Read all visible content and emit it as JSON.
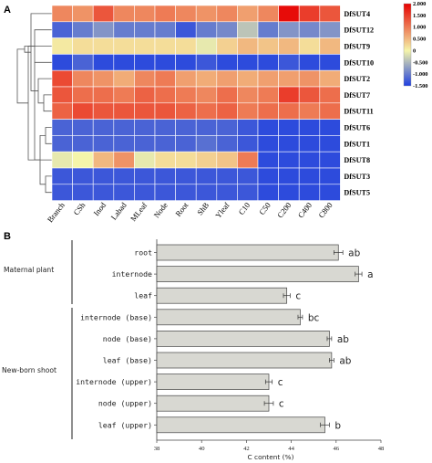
{
  "panels": {
    "a": "A",
    "b": "B"
  },
  "chart_data": [
    {
      "type": "heatmap",
      "columns": [
        "Branch",
        "CSh",
        "Inod",
        "Labad",
        "MLeaf",
        "Node",
        "Root",
        "ShB",
        "Yleaf",
        "C10",
        "C50",
        "C200",
        "C400",
        "C800"
      ],
      "rows": [
        "DfSUT4",
        "DfSUT12",
        "DfSUT9",
        "DfSUT10",
        "DfSUT2",
        "DfSUT7",
        "DfSUT11",
        "DfSUT6",
        "DfSUT1",
        "DfSUT8",
        "DfSUT3",
        "DfSUT5"
      ],
      "values": [
        [
          0.9,
          0.8,
          1.3,
          0.9,
          0.9,
          1.0,
          0.9,
          0.8,
          0.9,
          0.7,
          0.9,
          1.9,
          1.5,
          1.3
        ],
        [
          -1.2,
          -1.0,
          -0.8,
          -1.0,
          -1.0,
          -1.0,
          -1.3,
          -1.0,
          -0.9,
          -0.4,
          -1.0,
          -0.8,
          -0.9,
          -0.8
        ],
        [
          0.1,
          0.2,
          0.2,
          0.2,
          0.2,
          0.2,
          0.2,
          -0.1,
          0.3,
          0.5,
          0.4,
          0.5,
          0.2,
          0.5
        ],
        [
          -1.4,
          -1.2,
          -1.4,
          -1.4,
          -1.4,
          -1.4,
          -1.4,
          -1.3,
          -1.4,
          -1.4,
          -1.4,
          -1.3,
          -1.4,
          -1.4
        ],
        [
          1.4,
          0.9,
          0.8,
          0.6,
          0.9,
          1.0,
          0.7,
          0.6,
          0.7,
          0.6,
          0.7,
          0.7,
          0.8,
          0.6
        ],
        [
          1.3,
          1.1,
          1.1,
          1.0,
          1.2,
          1.1,
          1.0,
          0.9,
          1.1,
          0.9,
          1.0,
          1.5,
          1.3,
          1.1
        ],
        [
          1.2,
          1.4,
          1.3,
          1.3,
          1.3,
          1.3,
          1.2,
          1.1,
          1.2,
          1.0,
          1.1,
          1.1,
          1.0,
          1.1
        ],
        [
          -1.2,
          -1.2,
          -1.2,
          -1.2,
          -1.2,
          -1.2,
          -1.2,
          -1.2,
          -1.2,
          -1.3,
          -1.4,
          -1.4,
          -1.4,
          -1.4
        ],
        [
          -1.2,
          -1.2,
          -1.2,
          -1.2,
          -1.2,
          -1.2,
          -1.2,
          -1.1,
          -1.2,
          -1.3,
          -1.4,
          -1.4,
          -1.4,
          -1.4
        ],
        [
          -0.1,
          0.0,
          0.5,
          0.8,
          -0.1,
          0.2,
          0.2,
          0.3,
          0.4,
          1.0,
          -1.4,
          -1.4,
          -1.4,
          -1.4
        ],
        [
          -1.3,
          -1.3,
          -1.3,
          -1.3,
          -1.3,
          -1.3,
          -1.3,
          -1.3,
          -1.3,
          -1.3,
          -1.4,
          -1.4,
          -1.4,
          -1.4
        ],
        [
          -1.3,
          -1.3,
          -1.3,
          -1.3,
          -1.3,
          -1.3,
          -1.3,
          -1.3,
          -1.3,
          -1.3,
          -1.4,
          -1.4,
          -1.4,
          -1.4
        ]
      ],
      "colorbar": {
        "ticks": [
          "2.000",
          "1.500",
          "1.000",
          "0.500",
          "0",
          "-0.500",
          "-1.000",
          "-1.500"
        ],
        "range": [
          -1.5,
          2.0
        ]
      },
      "colors": {
        "low": "#1f3fe0",
        "mid": "#f5f5aa",
        "high": "#e60000"
      },
      "dendrogram": true
    },
    {
      "type": "bar",
      "orientation": "horizontal",
      "categories": [
        "root",
        "internode",
        "leaf",
        "internode (base)",
        "node (base)",
        "leaf (base)",
        "internode (upper)",
        "node (upper)",
        "leaf (upper)"
      ],
      "values": [
        46.1,
        47.0,
        43.8,
        44.4,
        45.7,
        45.8,
        43.0,
        43.0,
        45.5
      ],
      "errors": [
        0.2,
        0.15,
        0.15,
        0.1,
        0.1,
        0.1,
        0.15,
        0.2,
        0.2
      ],
      "significance": [
        "ab",
        "a",
        "c",
        "bc",
        "ab",
        "ab",
        "c",
        "c",
        "b"
      ],
      "groups": [
        {
          "label": "Maternal plant",
          "categories": [
            "root",
            "internode",
            "leaf"
          ]
        },
        {
          "label": "New-born shoot",
          "categories": [
            "internode (base)",
            "node (base)",
            "leaf (base)",
            "internode (upper)",
            "node (upper)",
            "leaf (upper)"
          ]
        }
      ],
      "xlabel": "C content (%)",
      "xlim": [
        38,
        48
      ],
      "xticks": [
        "38",
        "40",
        "42",
        "44",
        "46",
        "48"
      ],
      "bar_color": "#d8d8d2"
    }
  ]
}
